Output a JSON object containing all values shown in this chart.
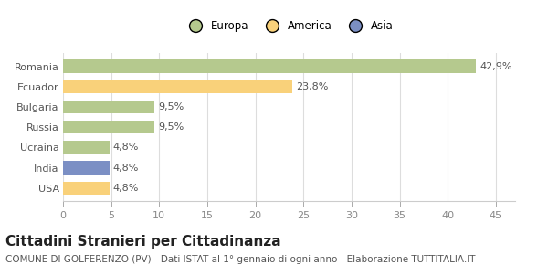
{
  "categories": [
    "Romania",
    "Ecuador",
    "Bulgaria",
    "Russia",
    "Ucraina",
    "India",
    "USA"
  ],
  "values": [
    42.9,
    23.8,
    9.5,
    9.5,
    4.8,
    4.8,
    4.8
  ],
  "labels": [
    "42,9%",
    "23,8%",
    "9,5%",
    "9,5%",
    "4,8%",
    "4,8%",
    "4,8%"
  ],
  "bar_colors": [
    "#b5c98e",
    "#f9d17a",
    "#b5c98e",
    "#b5c98e",
    "#b5c98e",
    "#7b8fc4",
    "#f9d17a"
  ],
  "legend_labels": [
    "Europa",
    "America",
    "Asia"
  ],
  "legend_colors": [
    "#b5c98e",
    "#f9d17a",
    "#7b8fc4"
  ],
  "xlim": [
    0,
    47
  ],
  "xticks": [
    0,
    5,
    10,
    15,
    20,
    25,
    30,
    35,
    40,
    45
  ],
  "title": "Cittadini Stranieri per Cittadinanza",
  "subtitle": "COMUNE DI GOLFERENZO (PV) - Dati ISTAT al 1° gennaio di ogni anno - Elaborazione TUTTITALIA.IT",
  "bg_color": "#ffffff",
  "bar_height": 0.65,
  "title_fontsize": 11,
  "subtitle_fontsize": 7.5,
  "tick_fontsize": 8,
  "label_fontsize": 8
}
